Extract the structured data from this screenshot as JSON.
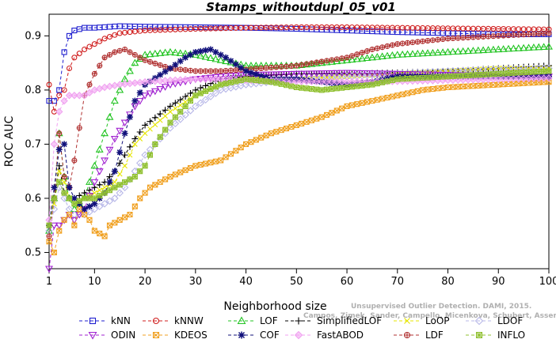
{
  "chart_data": {
    "type": "line",
    "title": "Stamps_withoutdupl_05_v01",
    "xlabel": "Neighborhood size",
    "ylabel": "ROC AUC",
    "xlim": [
      1,
      100
    ],
    "ylim": [
      0.47,
      0.94
    ],
    "x_ticks": [
      1,
      10,
      20,
      30,
      40,
      50,
      60,
      70,
      80,
      90,
      100
    ],
    "y_ticks": [
      0.5,
      0.6,
      0.7,
      0.8,
      0.9
    ],
    "grid": false,
    "legend_position": "bottom",
    "watermark": [
      "Unsupervised Outlier Detection. DAMI, 2015.",
      "Campos, Zimek, Sander, Campello, Micenkova, Schubert, Assent, Houle"
    ],
    "series": [
      {
        "name": "kNN",
        "color": "#1f1fcf",
        "marker": "square",
        "dash": "4,3",
        "points": [
          [
            1,
            0.78
          ],
          [
            2,
            0.78
          ],
          [
            3,
            0.8
          ],
          [
            4,
            0.87
          ],
          [
            5,
            0.9
          ],
          [
            6,
            0.91
          ],
          [
            8,
            0.915
          ],
          [
            10,
            0.915
          ],
          [
            15,
            0.918
          ],
          [
            20,
            0.917
          ],
          [
            30,
            0.916
          ],
          [
            40,
            0.915
          ],
          [
            50,
            0.913
          ],
          [
            60,
            0.91
          ],
          [
            70,
            0.907
          ],
          [
            80,
            0.905
          ],
          [
            90,
            0.903
          ],
          [
            100,
            0.903
          ]
        ]
      },
      {
        "name": "kNNW",
        "color": "#d01f1f",
        "marker": "circle",
        "dash": "4,3",
        "points": [
          [
            1,
            0.81
          ],
          [
            2,
            0.76
          ],
          [
            3,
            0.79
          ],
          [
            4,
            0.8
          ],
          [
            5,
            0.84
          ],
          [
            6,
            0.86
          ],
          [
            8,
            0.875
          ],
          [
            10,
            0.885
          ],
          [
            12,
            0.895
          ],
          [
            15,
            0.905
          ],
          [
            20,
            0.91
          ],
          [
            30,
            0.913
          ],
          [
            40,
            0.915
          ],
          [
            50,
            0.916
          ],
          [
            60,
            0.916
          ],
          [
            70,
            0.915
          ],
          [
            80,
            0.914
          ],
          [
            90,
            0.913
          ],
          [
            100,
            0.912
          ]
        ]
      },
      {
        "name": "LOF",
        "color": "#22c422",
        "marker": "triangle",
        "dash": "4,3",
        "points": [
          [
            1,
            0.54
          ],
          [
            2,
            0.6
          ],
          [
            3,
            0.72
          ],
          [
            4,
            0.64
          ],
          [
            5,
            0.6
          ],
          [
            6,
            0.58
          ],
          [
            8,
            0.6
          ],
          [
            10,
            0.66
          ],
          [
            12,
            0.72
          ],
          [
            14,
            0.78
          ],
          [
            16,
            0.82
          ],
          [
            18,
            0.85
          ],
          [
            20,
            0.865
          ],
          [
            25,
            0.87
          ],
          [
            30,
            0.865
          ],
          [
            35,
            0.855
          ],
          [
            40,
            0.845
          ],
          [
            50,
            0.845
          ],
          [
            60,
            0.855
          ],
          [
            70,
            0.865
          ],
          [
            80,
            0.87
          ],
          [
            90,
            0.875
          ],
          [
            100,
            0.88
          ]
        ]
      },
      {
        "name": "SimplifiedLOF",
        "color": "#000000",
        "marker": "plus",
        "dash": "4,3",
        "points": [
          [
            1,
            0.55
          ],
          [
            2,
            0.6
          ],
          [
            3,
            0.66
          ],
          [
            4,
            0.61
          ],
          [
            5,
            0.6
          ],
          [
            6,
            0.6
          ],
          [
            8,
            0.61
          ],
          [
            10,
            0.62
          ],
          [
            12,
            0.63
          ],
          [
            14,
            0.65
          ],
          [
            16,
            0.68
          ],
          [
            18,
            0.71
          ],
          [
            20,
            0.735
          ],
          [
            25,
            0.77
          ],
          [
            30,
            0.8
          ],
          [
            35,
            0.82
          ],
          [
            40,
            0.825
          ],
          [
            50,
            0.83
          ],
          [
            60,
            0.83
          ],
          [
            70,
            0.832
          ],
          [
            80,
            0.835
          ],
          [
            90,
            0.84
          ],
          [
            100,
            0.845
          ]
        ]
      },
      {
        "name": "LoOP",
        "color": "#e6e600",
        "marker": "cross",
        "dash": "4,3",
        "points": [
          [
            1,
            0.55
          ],
          [
            2,
            0.59
          ],
          [
            3,
            0.65
          ],
          [
            4,
            0.63
          ],
          [
            5,
            0.6
          ],
          [
            6,
            0.59
          ],
          [
            8,
            0.6
          ],
          [
            10,
            0.61
          ],
          [
            12,
            0.62
          ],
          [
            14,
            0.63
          ],
          [
            16,
            0.66
          ],
          [
            18,
            0.7
          ],
          [
            20,
            0.72
          ],
          [
            25,
            0.76
          ],
          [
            30,
            0.79
          ],
          [
            35,
            0.81
          ],
          [
            40,
            0.82
          ],
          [
            50,
            0.82
          ],
          [
            60,
            0.825
          ],
          [
            70,
            0.83
          ],
          [
            80,
            0.835
          ],
          [
            90,
            0.84
          ],
          [
            100,
            0.84
          ]
        ]
      },
      {
        "name": "LDOF",
        "color": "#b8b8e8",
        "marker": "diamond",
        "dash": "4,3",
        "points": [
          [
            1,
            0.54
          ],
          [
            2,
            0.58
          ],
          [
            3,
            0.62
          ],
          [
            4,
            0.6
          ],
          [
            5,
            0.58
          ],
          [
            6,
            0.57
          ],
          [
            8,
            0.57
          ],
          [
            10,
            0.58
          ],
          [
            12,
            0.59
          ],
          [
            14,
            0.6
          ],
          [
            16,
            0.62
          ],
          [
            18,
            0.65
          ],
          [
            20,
            0.68
          ],
          [
            25,
            0.73
          ],
          [
            30,
            0.77
          ],
          [
            35,
            0.8
          ],
          [
            40,
            0.81
          ],
          [
            50,
            0.82
          ],
          [
            60,
            0.825
          ],
          [
            70,
            0.83
          ],
          [
            80,
            0.835
          ],
          [
            90,
            0.838
          ],
          [
            100,
            0.84
          ]
        ]
      },
      {
        "name": "ODIN",
        "color": "#a020d0",
        "marker": "triangle-down",
        "dash": "4,3",
        "points": [
          [
            1,
            0.47
          ],
          [
            2,
            0.55
          ],
          [
            3,
            0.55
          ],
          [
            4,
            0.56
          ],
          [
            5,
            0.57
          ],
          [
            6,
            0.56
          ],
          [
            8,
            0.58
          ],
          [
            10,
            0.63
          ],
          [
            12,
            0.67
          ],
          [
            14,
            0.71
          ],
          [
            16,
            0.74
          ],
          [
            18,
            0.77
          ],
          [
            20,
            0.79
          ],
          [
            25,
            0.81
          ],
          [
            30,
            0.82
          ],
          [
            35,
            0.825
          ],
          [
            40,
            0.828
          ],
          [
            50,
            0.83
          ],
          [
            60,
            0.832
          ],
          [
            70,
            0.83
          ],
          [
            80,
            0.828
          ],
          [
            90,
            0.826
          ],
          [
            100,
            0.825
          ]
        ]
      },
      {
        "name": "KDEOS",
        "color": "#f0a020",
        "marker": "square-x",
        "dash": "4,3",
        "points": [
          [
            1,
            0.52
          ],
          [
            2,
            0.5
          ],
          [
            3,
            0.54
          ],
          [
            4,
            0.56
          ],
          [
            5,
            0.57
          ],
          [
            6,
            0.55
          ],
          [
            7,
            0.58
          ],
          [
            8,
            0.57
          ],
          [
            9,
            0.56
          ],
          [
            10,
            0.54
          ],
          [
            12,
            0.53
          ],
          [
            13,
            0.55
          ],
          [
            15,
            0.56
          ],
          [
            17,
            0.57
          ],
          [
            19,
            0.6
          ],
          [
            21,
            0.62
          ],
          [
            25,
            0.64
          ],
          [
            30,
            0.66
          ],
          [
            35,
            0.67
          ],
          [
            40,
            0.7
          ],
          [
            45,
            0.72
          ],
          [
            50,
            0.735
          ],
          [
            55,
            0.75
          ],
          [
            60,
            0.77
          ],
          [
            65,
            0.78
          ],
          [
            70,
            0.79
          ],
          [
            75,
            0.8
          ],
          [
            80,
            0.805
          ],
          [
            90,
            0.81
          ],
          [
            100,
            0.815
          ]
        ]
      },
      {
        "name": "LDF",
        "color": "#b03030",
        "marker": "circle-plus",
        "dash": "4,3",
        "points": [
          [
            1,
            0.53
          ],
          [
            2,
            0.6
          ],
          [
            3,
            0.72
          ],
          [
            4,
            0.64
          ],
          [
            5,
            0.62
          ],
          [
            6,
            0.67
          ],
          [
            8,
            0.79
          ],
          [
            10,
            0.83
          ],
          [
            12,
            0.86
          ],
          [
            14,
            0.87
          ],
          [
            16,
            0.875
          ],
          [
            18,
            0.865
          ],
          [
            20,
            0.855
          ],
          [
            25,
            0.84
          ],
          [
            30,
            0.835
          ],
          [
            35,
            0.835
          ],
          [
            40,
            0.838
          ],
          [
            50,
            0.845
          ],
          [
            60,
            0.86
          ],
          [
            65,
            0.875
          ],
          [
            70,
            0.885
          ],
          [
            80,
            0.895
          ],
          [
            90,
            0.9
          ],
          [
            100,
            0.905
          ]
        ]
      },
      {
        "name": "COF",
        "color": "#10107a",
        "marker": "asterisk",
        "dash": "4,3",
        "points": [
          [
            1,
            0.55
          ],
          [
            2,
            0.62
          ],
          [
            3,
            0.69
          ],
          [
            4,
            0.7
          ],
          [
            5,
            0.62
          ],
          [
            6,
            0.6
          ],
          [
            8,
            0.58
          ],
          [
            10,
            0.59
          ],
          [
            12,
            0.61
          ],
          [
            14,
            0.65
          ],
          [
            16,
            0.72
          ],
          [
            18,
            0.78
          ],
          [
            20,
            0.81
          ],
          [
            25,
            0.84
          ],
          [
            28,
            0.86
          ],
          [
            30,
            0.87
          ],
          [
            33,
            0.875
          ],
          [
            36,
            0.86
          ],
          [
            40,
            0.835
          ],
          [
            45,
            0.82
          ],
          [
            50,
            0.82
          ],
          [
            55,
            0.815
          ],
          [
            60,
            0.81
          ],
          [
            65,
            0.815
          ],
          [
            70,
            0.825
          ],
          [
            75,
            0.825
          ],
          [
            80,
            0.825
          ],
          [
            90,
            0.825
          ],
          [
            100,
            0.825
          ]
        ]
      },
      {
        "name": "FastABOD",
        "color": "#f0a0f0",
        "marker": "diamond-filled",
        "dash": "4,3",
        "points": [
          [
            1,
            0.56
          ],
          [
            2,
            0.7
          ],
          [
            3,
            0.76
          ],
          [
            4,
            0.78
          ],
          [
            5,
            0.79
          ],
          [
            6,
            0.79
          ],
          [
            8,
            0.79
          ],
          [
            10,
            0.8
          ],
          [
            12,
            0.805
          ],
          [
            15,
            0.81
          ],
          [
            20,
            0.815
          ],
          [
            25,
            0.818
          ],
          [
            30,
            0.82
          ],
          [
            35,
            0.82
          ],
          [
            40,
            0.818
          ],
          [
            50,
            0.816
          ],
          [
            60,
            0.815
          ],
          [
            70,
            0.816
          ],
          [
            80,
            0.818
          ],
          [
            90,
            0.82
          ],
          [
            100,
            0.822
          ]
        ]
      },
      {
        "name": "INFLO",
        "color": "#90c030",
        "marker": "square-star",
        "dash": "4,3",
        "points": [
          [
            1,
            0.55
          ],
          [
            2,
            0.6
          ],
          [
            3,
            0.63
          ],
          [
            4,
            0.61
          ],
          [
            5,
            0.6
          ],
          [
            6,
            0.59
          ],
          [
            8,
            0.6
          ],
          [
            10,
            0.6
          ],
          [
            12,
            0.61
          ],
          [
            14,
            0.62
          ],
          [
            16,
            0.63
          ],
          [
            18,
            0.64
          ],
          [
            20,
            0.66
          ],
          [
            22,
            0.7
          ],
          [
            25,
            0.74
          ],
          [
            28,
            0.77
          ],
          [
            30,
            0.79
          ],
          [
            35,
            0.81
          ],
          [
            40,
            0.82
          ],
          [
            45,
            0.815
          ],
          [
            50,
            0.805
          ],
          [
            55,
            0.8
          ],
          [
            60,
            0.805
          ],
          [
            65,
            0.81
          ],
          [
            70,
            0.82
          ],
          [
            80,
            0.825
          ],
          [
            90,
            0.83
          ],
          [
            100,
            0.835
          ]
        ]
      }
    ],
    "legend_rows": [
      [
        "kNN",
        "kNNW",
        "LOF",
        "SimplifiedLOF",
        "LoOP",
        "LDOF"
      ],
      [
        "ODIN",
        "KDEOS",
        "COF",
        "FastABOD",
        "LDF",
        "INFLO"
      ]
    ]
  }
}
